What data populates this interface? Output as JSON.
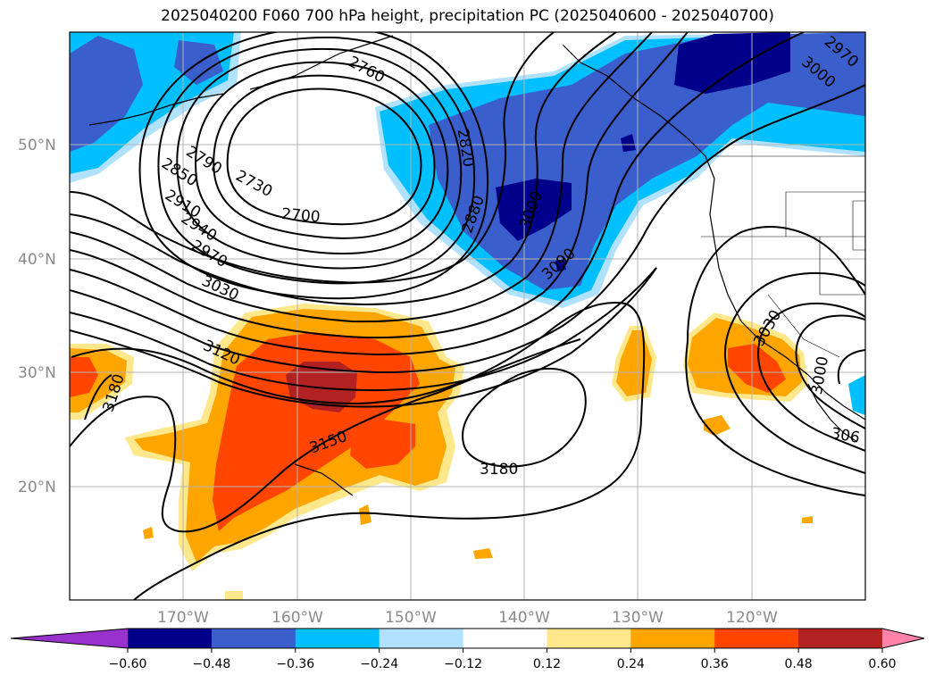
{
  "title": "2025040200 F060 700 hPa height, precipitation PC (2025040600 - 2025040700)",
  "map": {
    "lat_labels": [
      "50°N",
      "40°N",
      "30°N",
      "20°N"
    ],
    "lon_labels": [
      "170°W",
      "160°W",
      "150°W",
      "140°W",
      "130°W",
      "120°W"
    ],
    "contour_labels": [
      "2760",
      "2820",
      "2790",
      "2730",
      "2700",
      "2850",
      "2910",
      "2940",
      "2970",
      "3030",
      "2880",
      "3000",
      "3090",
      "3120",
      "3150",
      "3180",
      "3180",
      "3030",
      "3000",
      "306",
      "3000",
      "2970"
    ]
  },
  "colorbar": {
    "ticks": [
      "−0.60",
      "−0.48",
      "−0.36",
      "−0.24",
      "−0.12",
      "0.12",
      "0.24",
      "0.36",
      "0.48",
      "0.60"
    ],
    "colors": [
      "#9932cc",
      "#00008b",
      "#3a5fcd",
      "#00bfff",
      "#b0e2ff",
      "#ffffff",
      "#ffe88c",
      "#ffa500",
      "#ff4500",
      "#b22222",
      "#ff82ab"
    ]
  }
}
